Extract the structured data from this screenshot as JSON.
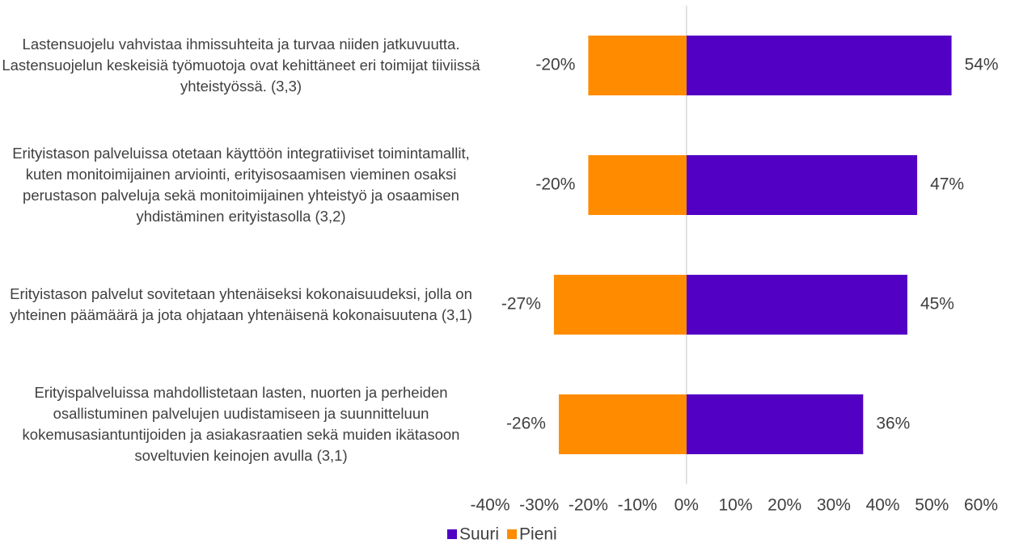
{
  "chart_data": {
    "type": "bar",
    "orientation": "horizontal",
    "categories": [
      "Lastensuojelu vahvistaa ihmissuhteita ja turvaa niiden jatkuvuutta. Lastensuojelun keskeisiä työmuotoja ovat kehittäneet eri toimijat tiiviissä yhteistyössä. (3,3)",
      "Erityistason palveluissa otetaan käyttöön integratiiviset toimintamallit, kuten monitoimijainen arviointi, erityisosaamisen vieminen osaksi perustason palveluja sekä monitoimijainen yhteistyö ja osaamisen yhdistäminen erityistasolla (3,2)",
      "Erityistason palvelut sovitetaan yhtenäiseksi kokonaisuudeksi, jolla on yhteinen päämäärä ja jota ohjataan yhtenäisenä kokonaisuutena (3,1)",
      "Erityispalveluissa mahdollistetaan lasten, nuorten ja perheiden osallistuminen palvelujen uudistamiseen ja suunnitteluun kokemusasiantuntijoiden ja asiakasraatien sekä muiden ikätasoon soveltuvien keinojen avulla (3,1)"
    ],
    "series": [
      {
        "name": "Suuri",
        "color": "#5200c4",
        "values": [
          54,
          47,
          45,
          36
        ],
        "value_labels": [
          "54%",
          "47%",
          "45%",
          "36%"
        ]
      },
      {
        "name": "Pieni",
        "color": "#ff8c00",
        "values": [
          -20,
          -20,
          -27,
          -26
        ],
        "value_labels": [
          "-20%",
          "-20%",
          "-27%",
          "-26%"
        ]
      }
    ],
    "xlim": [
      -40,
      60
    ],
    "xticks": [
      {
        "value": -40,
        "label": "-40%"
      },
      {
        "value": -30,
        "label": "-30%"
      },
      {
        "value": -20,
        "label": "-20%"
      },
      {
        "value": -10,
        "label": "-10%"
      },
      {
        "value": 0,
        "label": "0%"
      },
      {
        "value": 10,
        "label": "10%"
      },
      {
        "value": 20,
        "label": "20%"
      },
      {
        "value": 30,
        "label": "30%"
      },
      {
        "value": 40,
        "label": "40%"
      },
      {
        "value": 50,
        "label": "50%"
      },
      {
        "value": 60,
        "label": "60%"
      }
    ],
    "legend": "bottom"
  }
}
